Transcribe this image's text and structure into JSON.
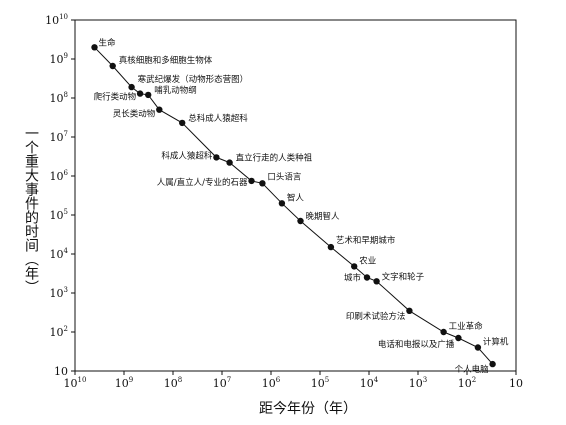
{
  "chart_data": {
    "type": "scatter",
    "xlabel": "距今年份（年）",
    "ylabel": "一个重大事件的时间（年）",
    "x_scale": "log",
    "y_scale": "log",
    "x_reversed": true,
    "xlim": [
      10000000000,
      10
    ],
    "ylim": [
      10,
      10000000000
    ],
    "grid": false,
    "x_ticks": [
      {
        "base": "10",
        "exp": "10"
      },
      {
        "base": "10",
        "exp": "9"
      },
      {
        "base": "10",
        "exp": "8"
      },
      {
        "base": "10",
        "exp": "7"
      },
      {
        "base": "10",
        "exp": "6"
      },
      {
        "base": "10",
        "exp": "5"
      },
      {
        "base": "10",
        "exp": "4"
      },
      {
        "base": "10",
        "exp": "3"
      },
      {
        "base": "10",
        "exp": "2"
      },
      {
        "base": "10",
        "exp": ""
      }
    ],
    "y_ticks": [
      {
        "base": "10",
        "exp": "10"
      },
      {
        "base": "10",
        "exp": "9"
      },
      {
        "base": "10",
        "exp": "8"
      },
      {
        "base": "10",
        "exp": "7"
      },
      {
        "base": "10",
        "exp": "6"
      },
      {
        "base": "10",
        "exp": "5"
      },
      {
        "base": "10",
        "exp": "4"
      },
      {
        "base": "10",
        "exp": "3"
      },
      {
        "base": "10",
        "exp": "2"
      },
      {
        "base": "10",
        "exp": ""
      }
    ],
    "points": [
      {
        "label": "生命",
        "x": 4000000000,
        "y": 2000000000
      },
      {
        "label": "真核细胞和多细胞生物体",
        "x": 1700000000,
        "y": 660000000
      },
      {
        "label": "寒武纪爆发（动物形态营图）",
        "x": 700000000,
        "y": 190000000
      },
      {
        "label": "爬行类动物",
        "x": 470000000,
        "y": 130000000
      },
      {
        "label": "哺乳动物纲",
        "x": 320000000,
        "y": 120000000
      },
      {
        "label": "灵长类动物",
        "x": 190000000,
        "y": 50000000
      },
      {
        "label": "总科成人猿超科",
        "x": 65000000,
        "y": 23000000
      },
      {
        "label": "科成人猿超科",
        "x": 13000000,
        "y": 3000000
      },
      {
        "label": "直立行走的人类种祖",
        "x": 7000000,
        "y": 2200000
      },
      {
        "label": "人属/直立人/专业的石器",
        "x": 2500000,
        "y": 750000
      },
      {
        "label": "口头语言",
        "x": 1500000,
        "y": 650000
      },
      {
        "label": "智人",
        "x": 600000,
        "y": 200000
      },
      {
        "label": "晚期智人",
        "x": 250000,
        "y": 70000
      },
      {
        "label": "艺术和早期城市",
        "x": 60000,
        "y": 15000
      },
      {
        "label": "农业",
        "x": 20000,
        "y": 4800
      },
      {
        "label": "城市",
        "x": 11000,
        "y": 2500
      },
      {
        "label": "文字和轮子",
        "x": 7000,
        "y": 2000
      },
      {
        "label": "印刷术试验方法",
        "x": 1500,
        "y": 350
      },
      {
        "label": "工业革命",
        "x": 300,
        "y": 100
      },
      {
        "label": "电话和电报以及广播",
        "x": 150,
        "y": 70
      },
      {
        "label": "计算机",
        "x": 60,
        "y": 40
      },
      {
        "label": "个人电脑",
        "x": 30,
        "y": 15
      }
    ]
  }
}
